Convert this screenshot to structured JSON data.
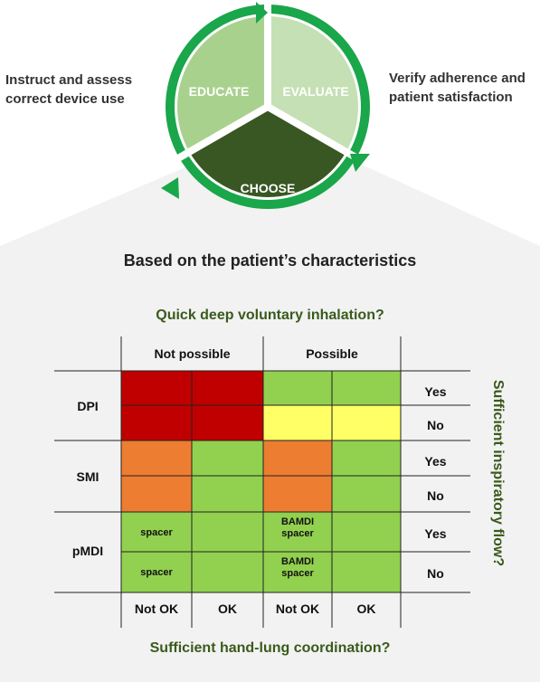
{
  "cycle": {
    "educate": "EDUCATE",
    "evaluate": "EVALUATE",
    "choose": "CHOOSE",
    "educate_desc": [
      "Instruct and assess",
      "correct device use"
    ],
    "evaluate_desc": [
      "Verify adherence and",
      "patient satisfaction"
    ]
  },
  "panel": {
    "title": "Based on the patient’s characteristics",
    "top_question": "Quick deep voluntary inhalation?",
    "bottom_question": "Sufficient hand-lung coordination?",
    "side_question": "Sufficient inspiratory flow?"
  },
  "matrix": {
    "col_groups": [
      "Not possible",
      "Possible"
    ],
    "bottom_labels": [
      "Not OK",
      "OK",
      "Not OK",
      "OK"
    ],
    "devices": [
      "DPI",
      "SMI",
      "pMDI"
    ],
    "flow_labels": [
      "Yes",
      "No",
      "Yes",
      "No",
      "Yes",
      "No"
    ],
    "cells": [
      [
        "red",
        "red",
        "green",
        "green"
      ],
      [
        "red",
        "red",
        "yellow",
        "yellow"
      ],
      [
        "orange",
        "green",
        "orange",
        "green"
      ],
      [
        "orange",
        "green",
        "orange",
        "green"
      ],
      [
        "green",
        "green",
        "green",
        "green"
      ],
      [
        "green",
        "green",
        "green",
        "green"
      ]
    ],
    "notes": {
      "spacer": "spacer",
      "bamdi_line1": "BAMDI",
      "bamdi_line2": "spacer"
    }
  },
  "colors": {
    "red": "#c00000",
    "orange": "#ed7d31",
    "green": "#92d050",
    "yellow": "#ffff66",
    "arc": "#1aa64a",
    "educate_fill": "#a9d18e",
    "evaluate_fill": "#c5e0b4",
    "choose_fill": "#385723",
    "heading_green": "#3a5a1c",
    "panel_fill": "#f2f2f2"
  }
}
